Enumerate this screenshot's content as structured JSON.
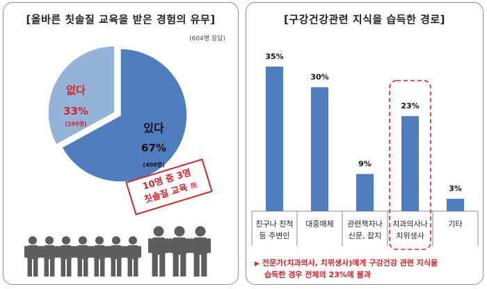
{
  "left_panel": {
    "title": "[올바른 칫솔질 교육을 받은 경험의 유무]",
    "respondents": "(604명 응답)",
    "stamp_line1": "10명 중 3명",
    "stamp_line2": "칫솔질 교육",
    "stamp_mark": "無"
  },
  "right_panel": {
    "title": "[구강건강관련 지식을 습득한 경로]",
    "note_line1": "전문가(치과의사, 치위생사)에게 구강건강 관련 지식을",
    "note_line2": "습득한 경우 전체의 23%에 불과"
  },
  "colors": {
    "pie_main": "#4f7dbe",
    "pie_light": "#95b3d7",
    "bar": "#4f7dbe",
    "accent_red": "#d2232a",
    "people_gray": "#5d5d5d"
  },
  "chart_data": [
    {
      "type": "pie",
      "slices": [
        {
          "label": "있다",
          "percent": "67%",
          "count": "(409명)",
          "value": 67
        },
        {
          "label": "없다",
          "percent": "33%",
          "count": "(195명)",
          "value": 33
        }
      ],
      "pictogram": {
        "total": 10,
        "highlighted": 3
      }
    },
    {
      "type": "bar",
      "categories": [
        [
          "친구나 친척",
          "등 주변인"
        ],
        [
          "대중매체"
        ],
        [
          "관련책자나",
          "신문, 잡지"
        ],
        [
          "치과의사나",
          "치위생사"
        ],
        [
          "기타"
        ]
      ],
      "values": [
        35,
        30,
        9,
        23,
        3
      ],
      "value_labels": [
        "35%",
        "30%",
        "9%",
        "23%",
        "3%"
      ],
      "highlighted_category": 3,
      "ylim": [
        0,
        40
      ],
      "grid": false
    }
  ]
}
